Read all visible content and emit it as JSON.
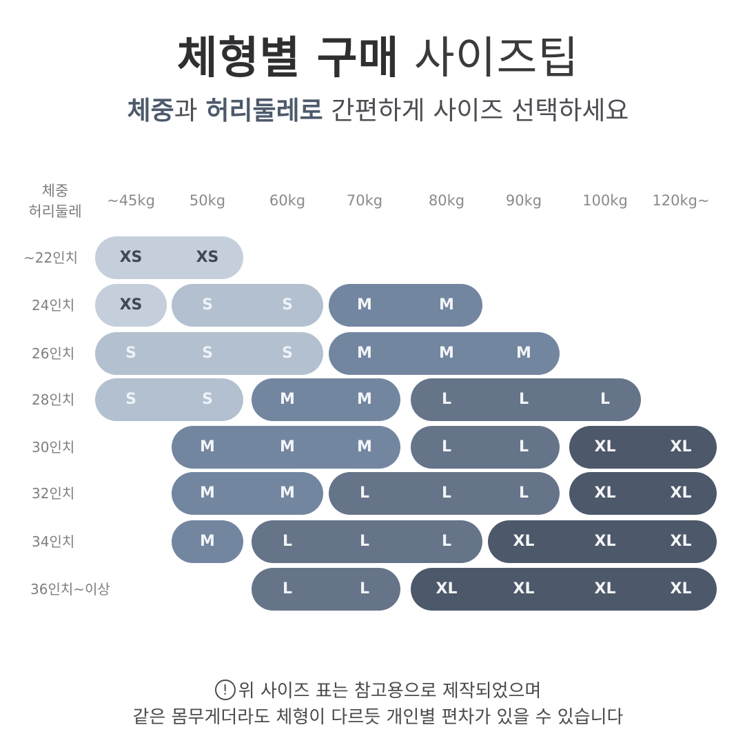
{
  "header": {
    "title_bold": "체형별 구매",
    "title_light": "사이즈팁",
    "subtitle_em1": "체중",
    "subtitle_mid1": "과 ",
    "subtitle_em2": "허리둘레로",
    "subtitle_rest": " 간편하게 사이즈 선택하세요"
  },
  "table": {
    "corner_top": "체중",
    "corner_bottom": "허리둘레",
    "columns": [
      "~45kg",
      "50kg",
      "60kg",
      "70kg",
      "80kg",
      "90kg",
      "100kg",
      "120kg~"
    ],
    "rows": [
      {
        "label": "~22인치",
        "cells": [
          "XS",
          "XS",
          "",
          "",
          "",
          "",
          "",
          ""
        ]
      },
      {
        "label": "24인치",
        "cells": [
          "XS",
          "S",
          "S",
          "M",
          "M",
          "",
          "",
          ""
        ]
      },
      {
        "label": "26인치",
        "cells": [
          "S",
          "S",
          "S",
          "M",
          "M",
          "M",
          "",
          ""
        ]
      },
      {
        "label": "28인치",
        "cells": [
          "S",
          "S",
          "M",
          "M",
          "L",
          "L",
          "L",
          ""
        ]
      },
      {
        "label": "30인치",
        "cells": [
          "",
          "M",
          "M",
          "M",
          "L",
          "L",
          "XL",
          "XL"
        ]
      },
      {
        "label": "32인치",
        "cells": [
          "",
          "M",
          "M",
          "L",
          "L",
          "L",
          "XL",
          "XL"
        ]
      },
      {
        "label": "34인치",
        "cells": [
          "",
          "M",
          "L",
          "L",
          "L",
          "XL",
          "XL",
          "XL"
        ]
      },
      {
        "label": "36인치~이상",
        "cells": [
          "",
          "",
          "L",
          "L",
          "XL",
          "XL",
          "XL",
          "XL"
        ]
      }
    ],
    "size_colors": {
      "XS": "#c5cedb",
      "S": "#b2c0cf",
      "M": "#7386a0",
      "L": "#667489",
      "XL": "#4d586a"
    },
    "text_colors": {
      "XS": "#3f4756",
      "S": "#eef2f6",
      "M": "#f2f4f7",
      "L": "#f2f4f7",
      "XL": "#f4f5f7"
    }
  },
  "footer": {
    "icon": "!",
    "line1": "위 사이즈 표는 참고용으로 제작되었으며",
    "line2": "같은 몸무게더라도 체형이 다르듯 개인별 편차가 있을 수 있습니다"
  }
}
